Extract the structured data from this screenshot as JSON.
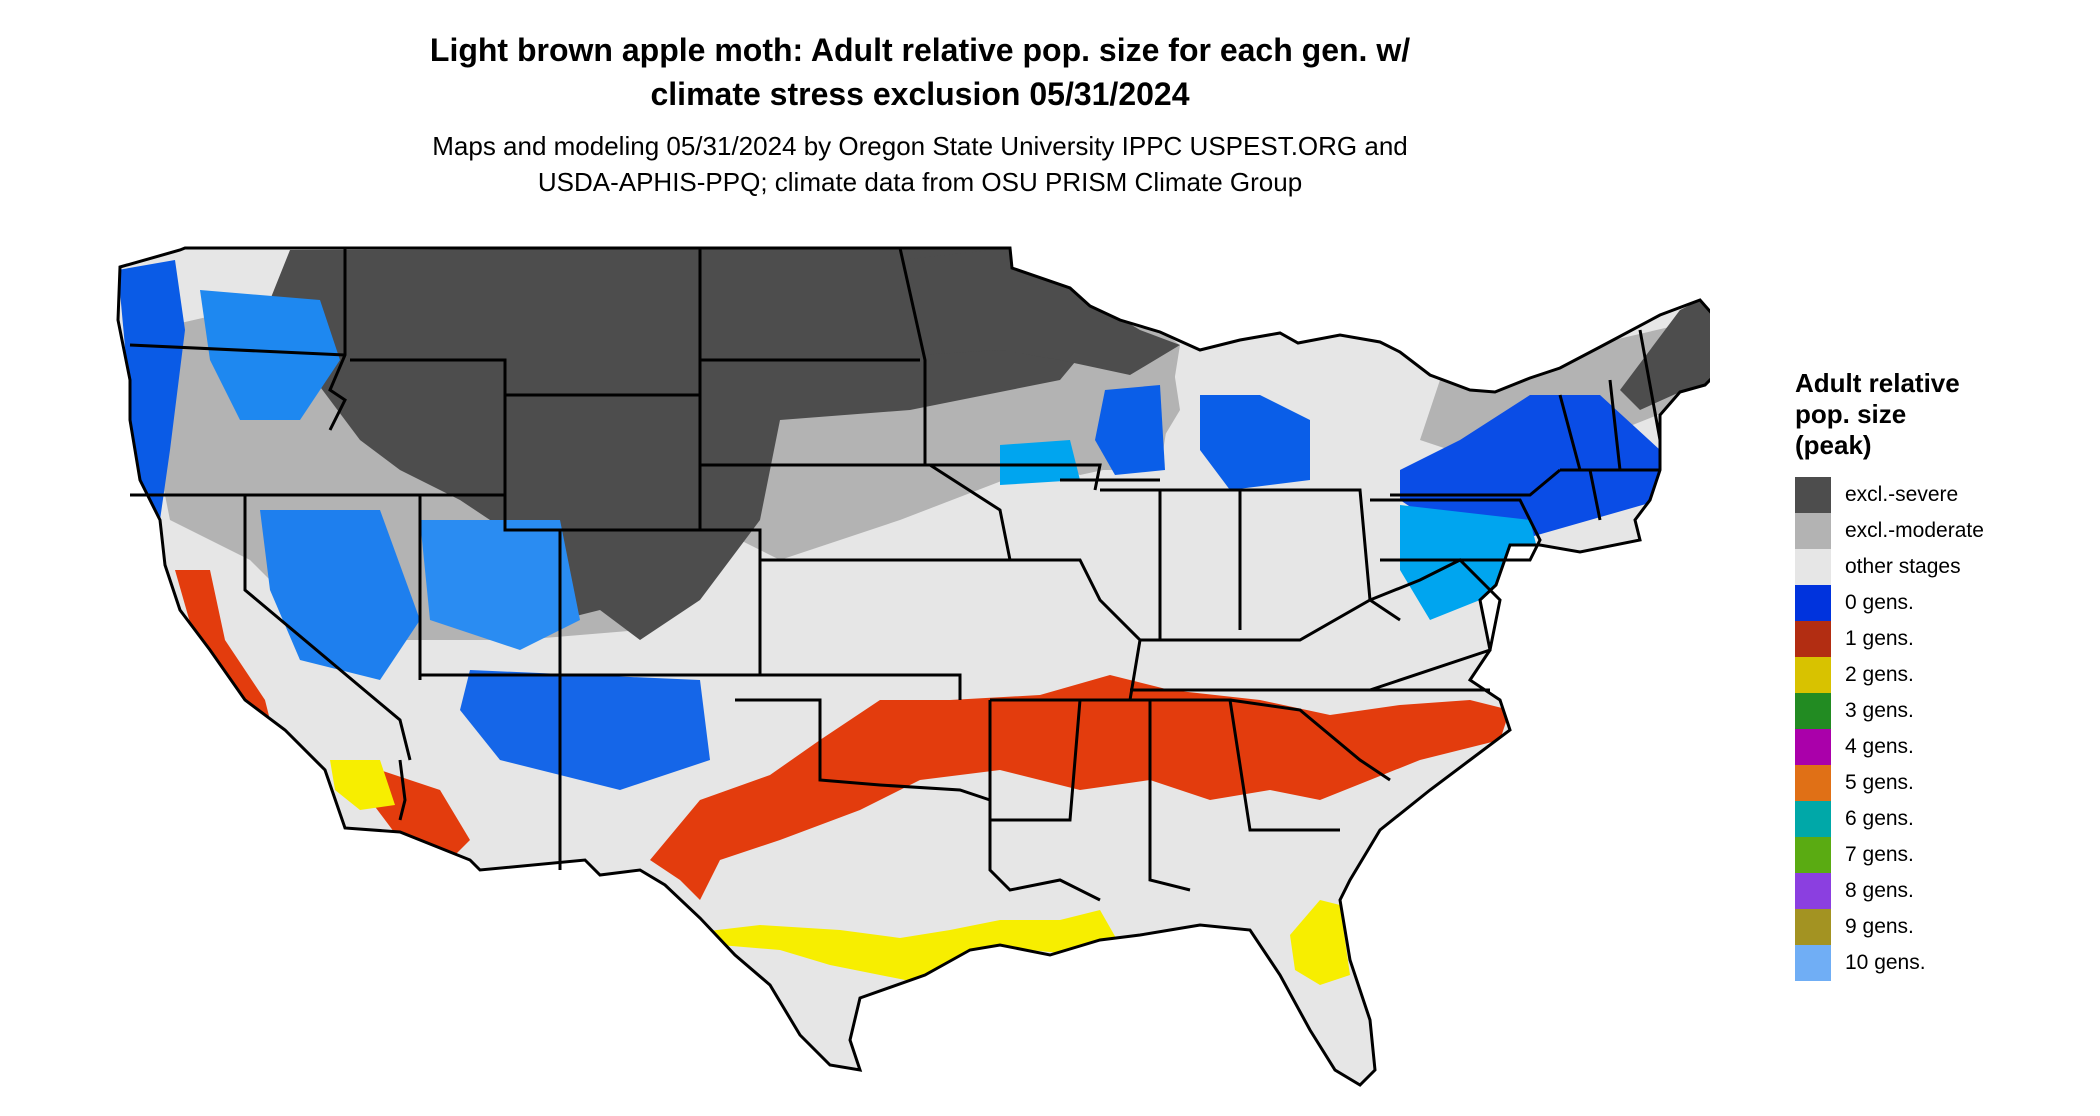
{
  "title_line1": "Light brown apple moth: Adult relative pop. size for each gen. w/",
  "title_line2": "climate stress exclusion 05/31/2024",
  "subtitle_line1": "Maps and modeling 05/31/2024 by Oregon State University IPPC USPEST.ORG and",
  "subtitle_line2": "USDA-APHIS-PPQ; climate data from OSU PRISM Climate Group",
  "legend": {
    "title_line1": "Adult relative",
    "title_line2": "pop. size",
    "title_line3": "(peak)",
    "items": [
      {
        "label": "excl.-severe",
        "color": "#4d4d4d"
      },
      {
        "label": "excl.-moderate",
        "color": "#b3b3b3"
      },
      {
        "label": "other stages",
        "color": "#e6e6e6"
      },
      {
        "label": "0 gens.",
        "color": "#0033dd"
      },
      {
        "label": "1 gens.",
        "color": "#b22d12"
      },
      {
        "label": "2 gens.",
        "color": "#d8c200"
      },
      {
        "label": "3 gens.",
        "color": "#228b22"
      },
      {
        "label": "4 gens.",
        "color": "#aa00aa"
      },
      {
        "label": "5 gens.",
        "color": "#e07016"
      },
      {
        "label": "6 gens.",
        "color": "#00a8a8"
      },
      {
        "label": "7 gens.",
        "color": "#5aab12"
      },
      {
        "label": "8 gens.",
        "color": "#8b3fe0"
      },
      {
        "label": "9 gens.",
        "color": "#a39322"
      },
      {
        "label": "10 gens.",
        "color": "#70aef5"
      }
    ]
  }
}
